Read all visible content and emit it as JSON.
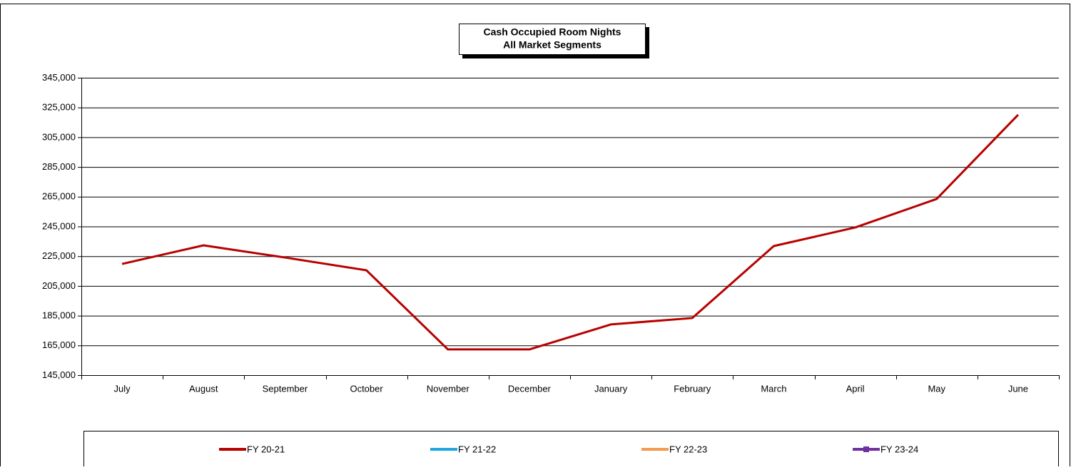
{
  "chart_data": {
    "type": "line",
    "title": "Cash Occupied Room Nights",
    "subtitle": "All Market Segments",
    "categories": [
      "July",
      "August",
      "September",
      "October",
      "November",
      "December",
      "January",
      "February",
      "March",
      "April",
      "May",
      "June"
    ],
    "series": [
      {
        "name": "FY 20-21",
        "color": "#b80000",
        "values": [
          219800,
          232300,
          224100,
          215500,
          162300,
          162300,
          179100,
          183400,
          231800,
          244300,
          263500,
          320100
        ]
      },
      {
        "name": "FY 21-22",
        "color": "#1ca7e0",
        "values": [
          null,
          null,
          null,
          null,
          null,
          null,
          null,
          null,
          null,
          null,
          null,
          null
        ]
      },
      {
        "name": "FY 22-23",
        "color": "#f59a4e",
        "values": [
          null,
          null,
          null,
          null,
          null,
          null,
          null,
          null,
          null,
          null,
          null,
          null
        ]
      },
      {
        "name": "FY 23-24",
        "color": "#7030a0",
        "marker": "square",
        "values": [
          null,
          null,
          null,
          null,
          null,
          null,
          null,
          null,
          null,
          null,
          null,
          null
        ]
      }
    ],
    "ylim": [
      145000,
      345000
    ],
    "yticks": [
      {
        "value": 145000,
        "label": "145,000"
      },
      {
        "value": 165000,
        "label": "165,000"
      },
      {
        "value": 185000,
        "label": "185,000"
      },
      {
        "value": 205000,
        "label": "205,000"
      },
      {
        "value": 225000,
        "label": "225,000"
      },
      {
        "value": 245000,
        "label": "245,000"
      },
      {
        "value": 265000,
        "label": "265,000"
      },
      {
        "value": 285000,
        "label": "285,000"
      },
      {
        "value": 305000,
        "label": "305,000"
      },
      {
        "value": 325000,
        "label": "325,000"
      },
      {
        "value": 345000,
        "label": "345,000"
      }
    ],
    "grid": true,
    "legend": "bottom"
  }
}
